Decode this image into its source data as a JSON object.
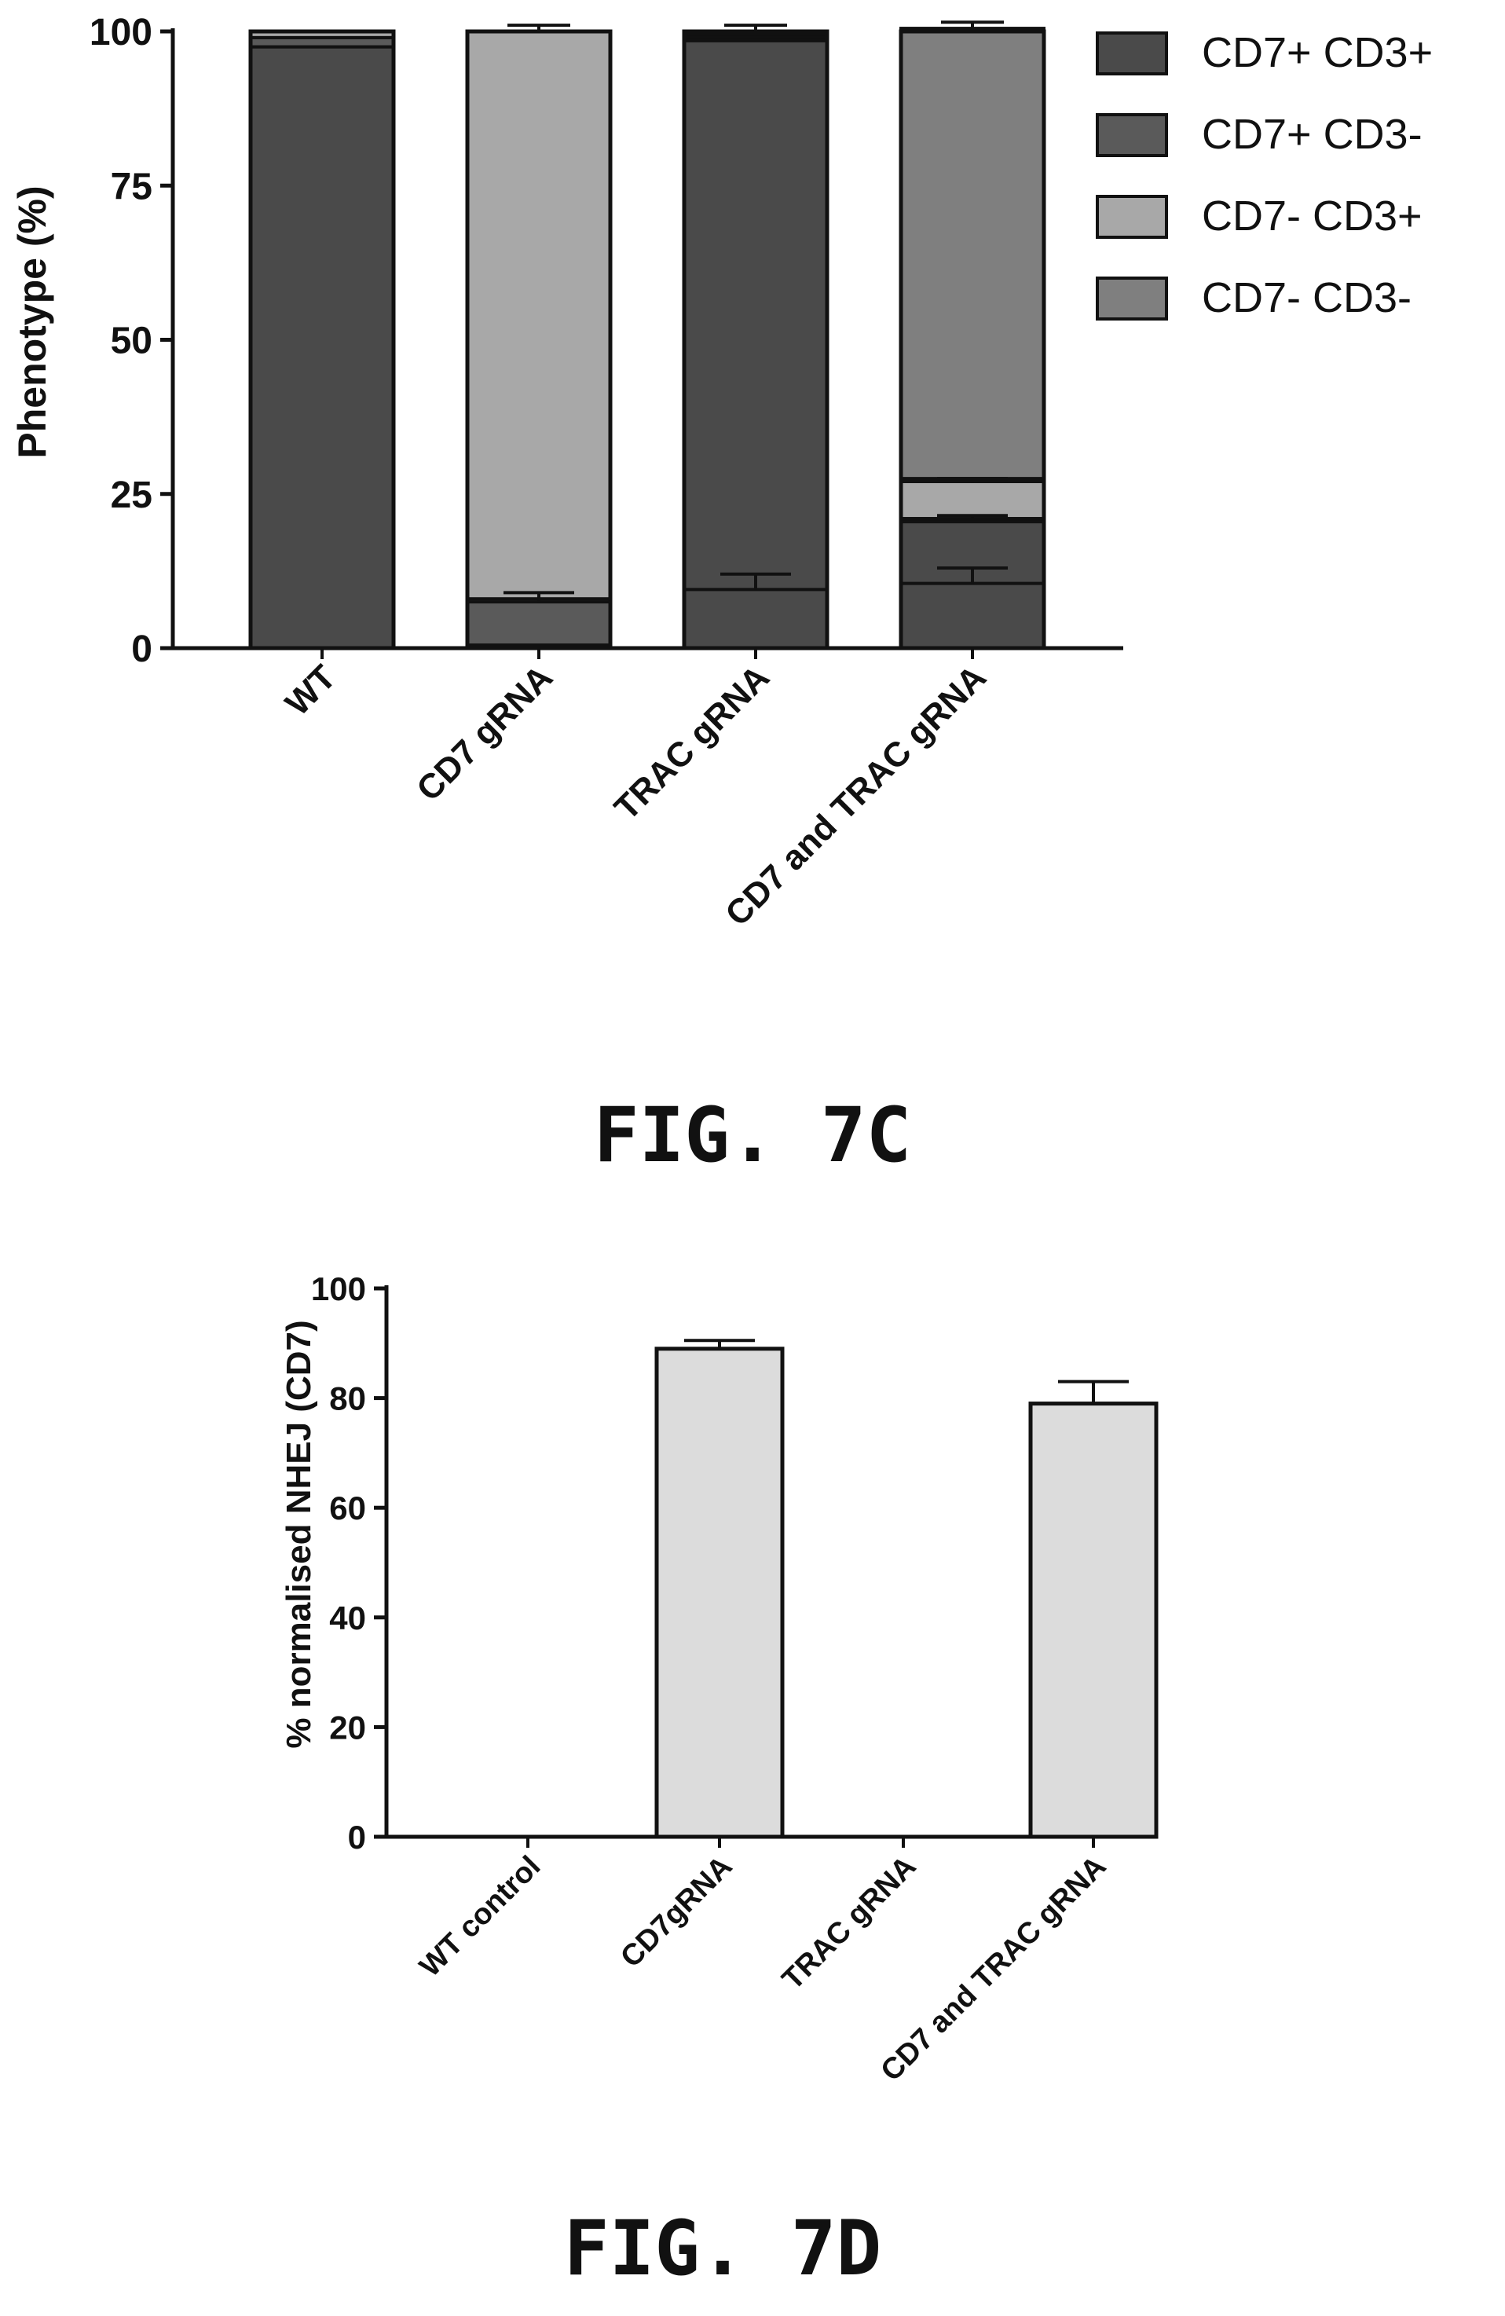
{
  "colors": {
    "axis": "#111111",
    "cd7pos_cd3pos": "#4a4a4a",
    "cd7pos_cd3neg": "#5a5a5a",
    "cd7neg_cd3pos": "#a8a8a8",
    "cd7neg_cd3neg": "#7f7f7f",
    "nhej_bar": "#dcdcdc"
  },
  "chart_data": [
    {
      "type": "bar",
      "stacked": true,
      "figure_label": "FIG. 7C",
      "title": "",
      "xlabel": "",
      "ylabel": "Phenotype (%)",
      "ylim": [
        0,
        100
      ],
      "yticks": [
        "0",
        "25",
        "50",
        "75",
        "100"
      ],
      "legend_position": "top-right",
      "categories": [
        "WT",
        "CD7 gRNA",
        "TRAC gRNA",
        "CD7 and TRAC gRNA"
      ],
      "series": [
        {
          "name": "CD7+ CD3+",
          "color_key": "cd7pos_cd3pos",
          "values": [
            97.5,
            0.5,
            98.5,
            20.5
          ],
          "errors": [
            0,
            0,
            0,
            0
          ]
        },
        {
          "name": "CD7+ CD3-",
          "color_key": "cd7pos_cd3neg",
          "values": [
            1.5,
            7.5,
            0.5,
            0.5
          ],
          "errors": [
            0,
            1.5,
            0,
            0
          ]
        },
        {
          "name": "CD7- CD3+",
          "color_key": "cd7neg_cd3pos",
          "values": [
            1.0,
            92.0,
            0.5,
            6.5
          ],
          "errors": [
            0,
            0,
            0,
            0.5
          ]
        },
        {
          "name": "CD7- CD3-",
          "color_key": "cd7neg_cd3neg",
          "values": [
            0,
            0,
            0.5,
            73.0
          ],
          "errors": [
            0,
            0,
            0,
            1
          ]
        }
      ],
      "totals": [
        100,
        100,
        100,
        100
      ],
      "total_errors": [
        0,
        1,
        1,
        1.5
      ],
      "markers_at": {
        "CD7 gRNA": [
          {
            "y": 7.5,
            "err": 1.5
          }
        ],
        "TRAC gRNA": [
          {
            "y": 9.5,
            "err": 2.5
          }
        ],
        "CD7 and TRAC gRNA": [
          {
            "y": 10.5,
            "err": 2.5
          },
          {
            "y": 21,
            "err": 0.5
          },
          {
            "y": 27,
            "err": 0.5
          }
        ]
      }
    },
    {
      "type": "bar",
      "figure_label": "FIG. 7D",
      "title": "",
      "xlabel": "",
      "ylabel": "% normalised NHEJ (CD7)",
      "ylim": [
        0,
        100
      ],
      "yticks": [
        "0",
        "20",
        "40",
        "60",
        "80",
        "100"
      ],
      "categories": [
        "WT control",
        "CD7gRNA",
        "TRAC gRNA",
        "CD7 and TRAC gRNA"
      ],
      "values": [
        0,
        89,
        0,
        79
      ],
      "errors": [
        0,
        1.5,
        0,
        4
      ]
    }
  ]
}
